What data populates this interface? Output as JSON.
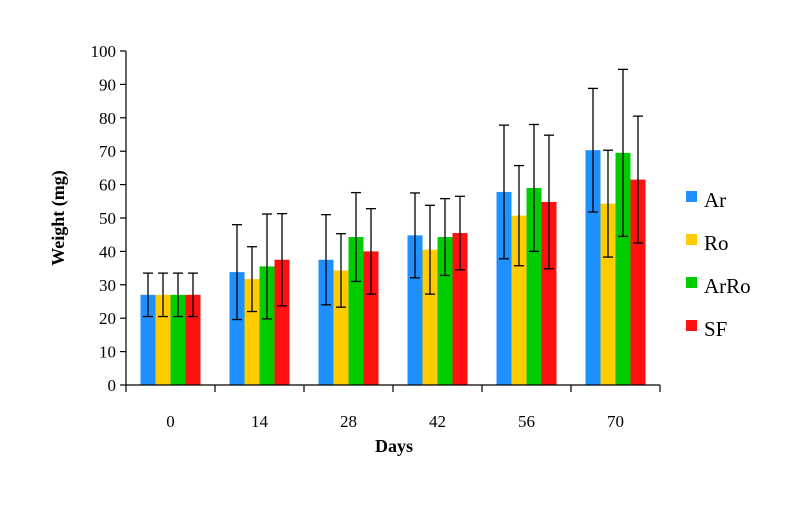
{
  "chart_data": {
    "type": "bar",
    "title": "",
    "xlabel": "Days",
    "ylabel": "Weight (mg)",
    "ylim": [
      0,
      100
    ],
    "yticks": [
      0,
      10,
      20,
      30,
      40,
      50,
      60,
      70,
      80,
      90,
      100
    ],
    "categories": [
      "0",
      "14",
      "28",
      "42",
      "56",
      "70"
    ],
    "legend_position": "right",
    "grid": false,
    "series": [
      {
        "name": "Ar",
        "color": "#1e90ff",
        "values": [
          27,
          33.8,
          37.5,
          44.8,
          57.8,
          70.3
        ],
        "error": [
          6.5,
          14.2,
          13.5,
          12.7,
          20.0,
          18.5
        ]
      },
      {
        "name": "Ro",
        "color": "#ffcc00",
        "values": [
          27,
          31.7,
          34.3,
          40.5,
          50.7,
          54.3
        ],
        "error": [
          6.5,
          9.7,
          11.0,
          13.3,
          15.0,
          16.0
        ]
      },
      {
        "name": "ArRo",
        "color": "#00cc00",
        "values": [
          27,
          35.5,
          44.3,
          44.3,
          59.0,
          69.5
        ],
        "error": [
          6.5,
          15.7,
          13.3,
          11.5,
          19.0,
          25.0
        ]
      },
      {
        "name": "SF",
        "color": "#ff1111",
        "values": [
          27,
          37.5,
          40.0,
          45.5,
          54.8,
          61.5
        ],
        "error": [
          6.5,
          13.8,
          12.8,
          11.0,
          20.0,
          19.0
        ]
      }
    ]
  }
}
